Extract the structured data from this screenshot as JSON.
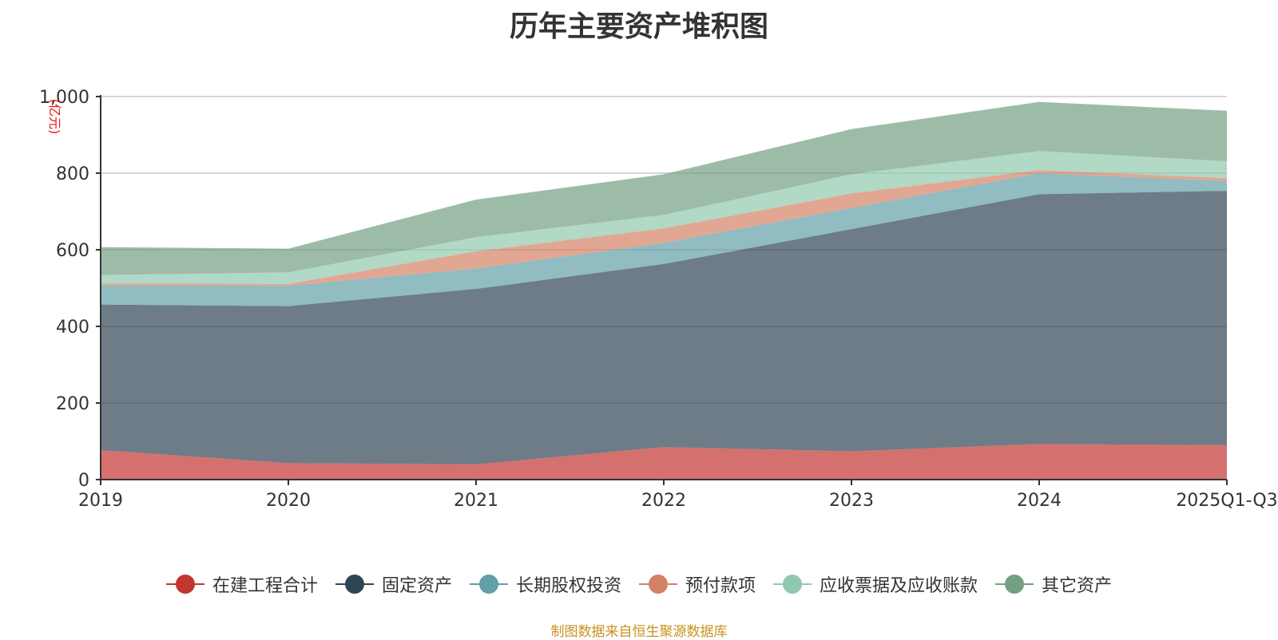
{
  "chart_data": {
    "type": "area",
    "stacked": true,
    "title": "历年主要资产堆积图",
    "ylabel": "(亿元)",
    "xlabel": "",
    "ylim": [
      0,
      1000
    ],
    "yticks": [
      0,
      200,
      400,
      600,
      800,
      1000
    ],
    "ytick_labels": [
      "0",
      "200",
      "400",
      "600",
      "800",
      "1,000"
    ],
    "categories": [
      "2019",
      "2020",
      "2021",
      "2022",
      "2023",
      "2024",
      "2025Q1-Q3"
    ],
    "grid": true,
    "legend_position": "bottom",
    "series": [
      {
        "name": "在建工程合计",
        "color": "#c23531",
        "values": [
          77,
          43,
          40,
          85,
          74,
          93,
          90
        ]
      },
      {
        "name": "固定资产",
        "color": "#2f4554",
        "values": [
          380,
          410,
          458,
          478,
          580,
          652,
          664
        ]
      },
      {
        "name": "长期股权投资",
        "color": "#61a0a8",
        "values": [
          50,
          53,
          53,
          55,
          55,
          55,
          25
        ]
      },
      {
        "name": "预付款项",
        "color": "#d48265",
        "values": [
          5,
          5,
          45,
          38,
          38,
          8,
          8
        ]
      },
      {
        "name": "应收票据及应收账款",
        "color": "#91c7ae",
        "values": [
          22,
          30,
          37,
          35,
          50,
          50,
          44
        ]
      },
      {
        "name": "其它资产",
        "color": "#749f83",
        "values": [
          73,
          62,
          98,
          106,
          118,
          128,
          132
        ]
      }
    ],
    "source": "制图数据来自恒生聚源数据库"
  }
}
